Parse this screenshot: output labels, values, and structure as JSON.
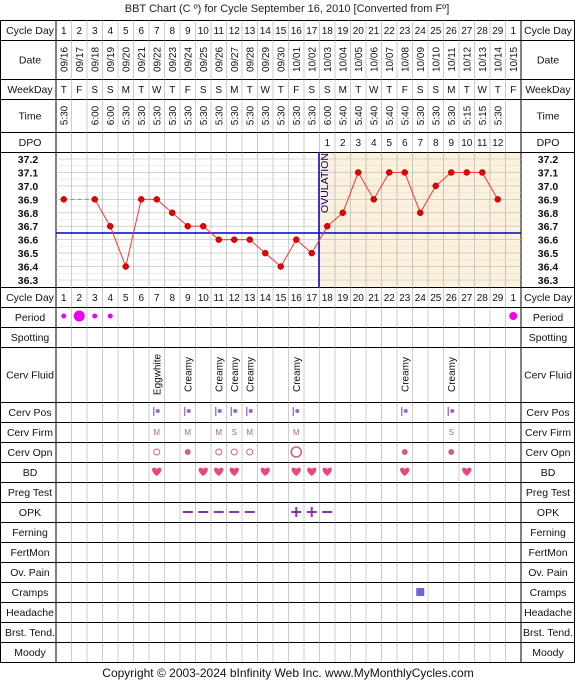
{
  "title": "BBT Chart (C º) for Cycle September 16, 2010  [Converted from Fº]",
  "footer": "Copyright © 2003-2024 bInfinity Web Inc.    www.MyMonthlyCycles.com",
  "row_labels": {
    "cycle_day": "Cycle Day",
    "date": "Date",
    "weekday": "WeekDay",
    "time": "Time",
    "dpo": "DPO",
    "period": "Period",
    "spotting": "Spotting",
    "cerv_fluid": "Cerv Fluid",
    "cerv_pos": "Cerv Pos",
    "cerv_firm": "Cerv Firm",
    "cerv_opn": "Cerv Opn",
    "bd": "BD",
    "preg_test": "Preg Test",
    "opk": "OPK",
    "ferning": "Ferning",
    "fertmon": "FertMon",
    "ov_pain": "Ov. Pain",
    "cramps": "Cramps",
    "headache": "Headache",
    "brst_tend": "Brst. Tend.",
    "moody": "Moody"
  },
  "ovulation_label": "OVULATION",
  "colors": {
    "temp_bg": "#fbf1dc",
    "grid": "#999999",
    "temp_line": "#ff3333",
    "temp_dot": "#e80000",
    "coverline": "#0000cc",
    "ovulation_line": "#0000cc",
    "period": "#ee00ee",
    "heart": "#e8467e",
    "opk": "#8833aa",
    "cramps": "#6666dd"
  },
  "columns": {
    "cycle_day": [
      "1",
      "2",
      "3",
      "4",
      "5",
      "6",
      "7",
      "8",
      "9",
      "10",
      "11",
      "12",
      "13",
      "14",
      "15",
      "16",
      "17",
      "18",
      "19",
      "20",
      "21",
      "22",
      "23",
      "24",
      "25",
      "26",
      "27",
      "28",
      "29",
      "1"
    ],
    "date": [
      "09/16",
      "09/17",
      "09/18",
      "09/19",
      "09/20",
      "09/21",
      "09/22",
      "09/23",
      "09/24",
      "09/25",
      "09/26",
      "09/27",
      "09/28",
      "09/29",
      "09/30",
      "10/01",
      "10/02",
      "10/03",
      "10/04",
      "10/05",
      "10/06",
      "10/07",
      "10/08",
      "10/09",
      "10/10",
      "10/11",
      "10/12",
      "10/13",
      "10/14",
      "10/15"
    ],
    "weekday": [
      "T",
      "F",
      "S",
      "S",
      "M",
      "T",
      "W",
      "T",
      "F",
      "S",
      "S",
      "M",
      "T",
      "W",
      "T",
      "F",
      "S",
      "S",
      "M",
      "T",
      "W",
      "T",
      "F",
      "S",
      "S",
      "M",
      "T",
      "W",
      "T",
      "F"
    ],
    "time": [
      "5:30",
      "",
      "6:00",
      "6:00",
      "5:30",
      "5:30",
      "5:30",
      "5:30",
      "5:30",
      "5:30",
      "5:30",
      "5:30",
      "5:30",
      "5:30",
      "5:30",
      "5:30",
      "5:30",
      "6:00",
      "5:40",
      "5:40",
      "5:40",
      "5:40",
      "5:40",
      "5:30",
      "5:30",
      "5:30",
      "5:15",
      "5:15",
      "5:30",
      ""
    ],
    "dpo": [
      "",
      "",
      "",
      "",
      "",
      "",
      "",
      "",
      "",
      "",
      "",
      "",
      "",
      "",
      "",
      "",
      "",
      "1",
      "2",
      "3",
      "4",
      "5",
      "6",
      "7",
      "8",
      "9",
      "10",
      "11",
      "12",
      ""
    ]
  },
  "temp_axis_labels": [
    "37.2",
    "37.1",
    "37.0",
    "36.9",
    "36.8",
    "36.7",
    "36.6",
    "36.5",
    "36.4",
    "36.3"
  ],
  "cerv_fluid": [
    "",
    "",
    "",
    "",
    "",
    "",
    "Eggwhite",
    "",
    "Creamy",
    "",
    "Creamy",
    "Creamy",
    "Creamy",
    "",
    "",
    "Creamy",
    "",
    "",
    "",
    "",
    "",
    "",
    "Creamy",
    "",
    "",
    "Creamy",
    "",
    "",
    "",
    ""
  ],
  "cerv_firm": [
    "",
    "",
    "",
    "",
    "",
    "",
    "M",
    "",
    "M",
    "",
    "M",
    "S",
    "M",
    "",
    "",
    "M",
    "",
    "",
    "",
    "",
    "",
    "",
    "",
    "",
    "",
    "S",
    "",
    "",
    "",
    ""
  ],
  "chart_data": {
    "type": "line",
    "title": "BBT Chart (C º) for Cycle September 16, 2010  [Converted from Fº]",
    "xlabel": "Cycle Day",
    "ylabel": "",
    "ylim": [
      36.3,
      37.2
    ],
    "x": [
      1,
      2,
      3,
      4,
      5,
      6,
      7,
      8,
      9,
      10,
      11,
      12,
      13,
      14,
      15,
      16,
      17,
      18,
      19,
      20,
      21,
      22,
      23,
      24,
      25,
      26,
      27,
      28,
      29,
      30
    ],
    "series": [
      {
        "values": [
          36.9,
          null,
          36.9,
          36.7,
          36.4,
          36.9,
          36.9,
          36.8,
          36.7,
          36.7,
          36.6,
          36.6,
          36.6,
          36.5,
          36.4,
          36.6,
          36.5,
          36.7,
          36.8,
          37.1,
          36.9,
          37.1,
          37.1,
          36.8,
          37.0,
          37.1,
          37.1,
          37.1,
          36.9,
          null
        ]
      }
    ],
    "coverline": 36.65,
    "ovulation_day": 17,
    "gap_connector": [
      1,
      3
    ],
    "grid": true
  },
  "period_markers": [
    {
      "day": 1,
      "size": "small"
    },
    {
      "day": 2,
      "size": "large"
    },
    {
      "day": 3,
      "size": "small"
    },
    {
      "day": 4,
      "size": "small"
    },
    {
      "day": 30,
      "size": "medium"
    }
  ],
  "cerv_pos_days": [
    7,
    9,
    11,
    12,
    13,
    16,
    23,
    26
  ],
  "cerv_opn": [
    {
      "day": 7,
      "type": "open-small"
    },
    {
      "day": 9,
      "type": "dot"
    },
    {
      "day": 11,
      "type": "open-small"
    },
    {
      "day": 12,
      "type": "open-small"
    },
    {
      "day": 13,
      "type": "open-small"
    },
    {
      "day": 16,
      "type": "open-large"
    },
    {
      "day": 23,
      "type": "dot"
    },
    {
      "day": 26,
      "type": "dot"
    }
  ],
  "bd_days": [
    7,
    10,
    11,
    12,
    14,
    16,
    17,
    18,
    23,
    27
  ],
  "opk": [
    {
      "day": 9,
      "result": "negative"
    },
    {
      "day": 10,
      "result": "negative"
    },
    {
      "day": 11,
      "result": "negative"
    },
    {
      "day": 12,
      "result": "negative"
    },
    {
      "day": 13,
      "result": "negative"
    },
    {
      "day": 16,
      "result": "positive"
    },
    {
      "day": 17,
      "result": "positive"
    },
    {
      "day": 18,
      "result": "negative"
    }
  ],
  "cramps_days": [
    24
  ]
}
